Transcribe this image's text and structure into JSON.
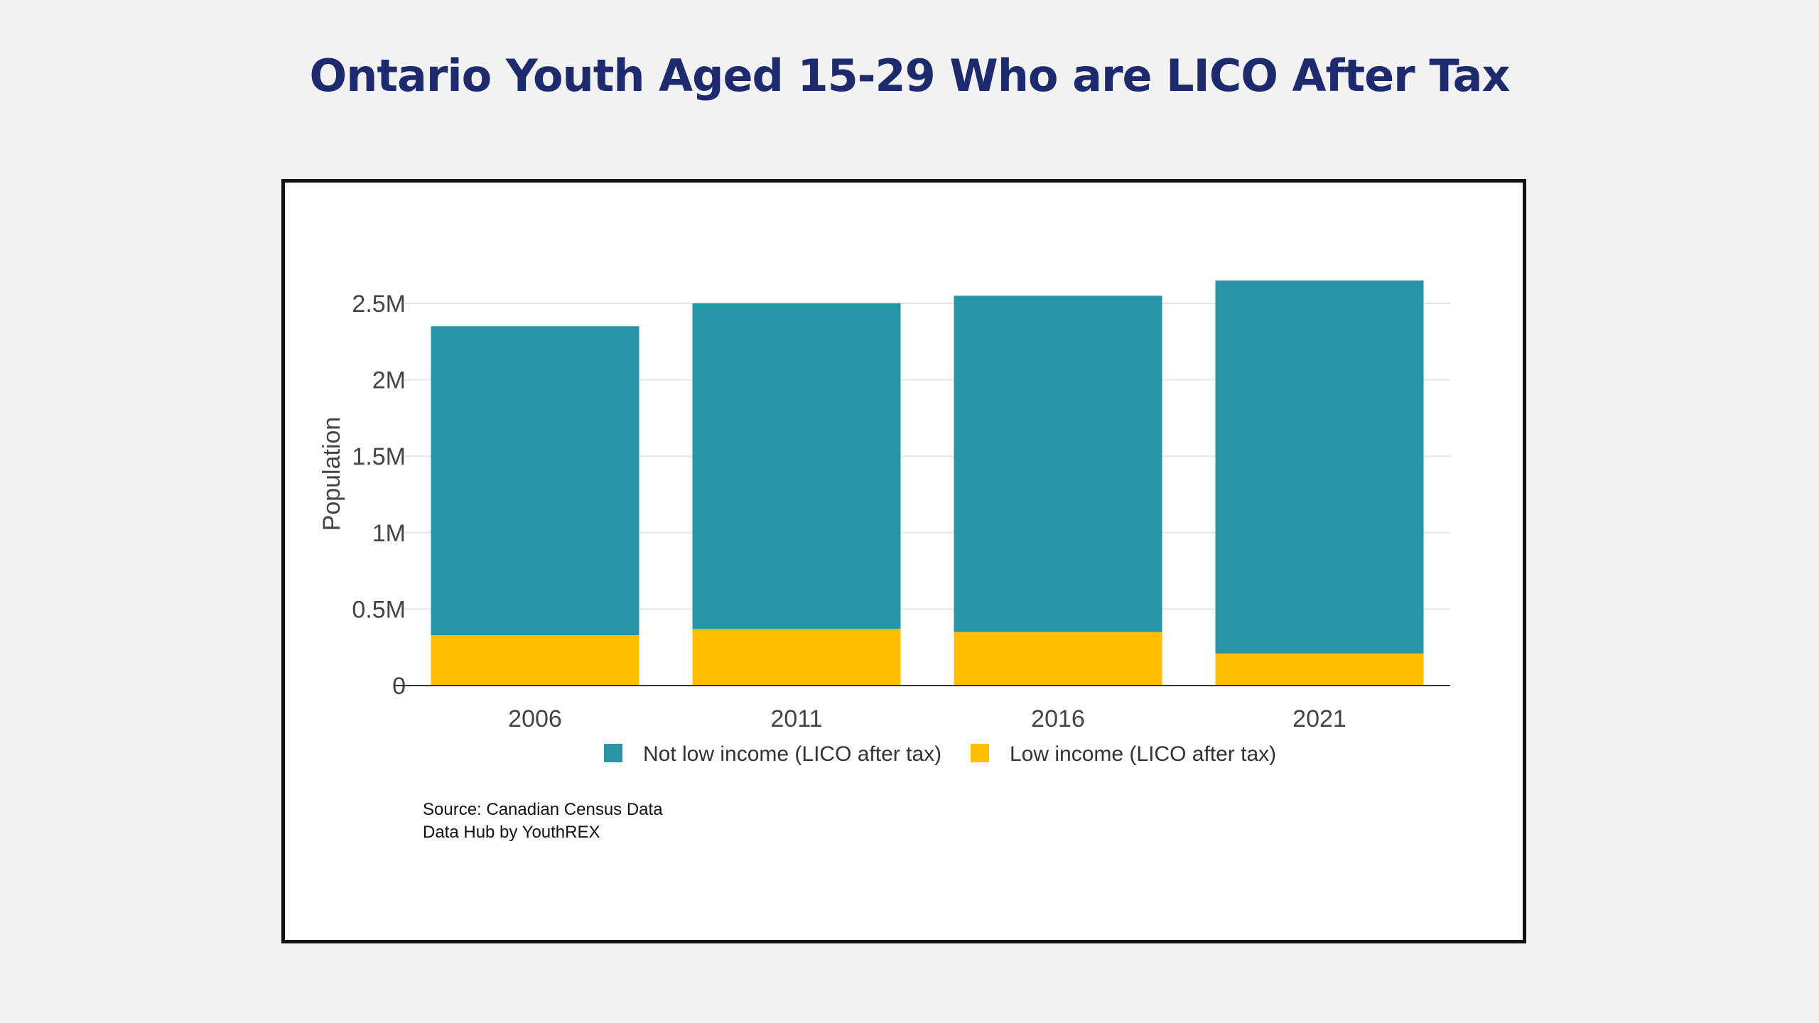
{
  "title": "Ontario Youth Aged 15-29 Who are LICO After Tax",
  "source_lines": [
    "Source: Canadian Census Data",
    "Data Hub by YouthREX"
  ],
  "colors": {
    "not_low_income": "#2795a6",
    "low_income": "#fdbf00",
    "title": "#1e2a6e",
    "background": "#f2f2f2"
  },
  "chart_data": {
    "type": "bar",
    "stacked": true,
    "categories": [
      "2006",
      "2011",
      "2016",
      "2021"
    ],
    "series": [
      {
        "name": "Low income (LICO after tax)",
        "values": [
          330000,
          370000,
          350000,
          210000
        ],
        "color": "#fdbf00"
      },
      {
        "name": "Not low income (LICO after tax)",
        "values": [
          2020000,
          2130000,
          2200000,
          2440000
        ],
        "color": "#2795a6"
      }
    ],
    "title": "Ontario Youth Aged 15-29 Who are LICO After Tax",
    "xlabel": "",
    "ylabel": "Population",
    "ylim": [
      0,
      2500000
    ],
    "yticks": [
      0,
      500000,
      1000000,
      1500000,
      2000000,
      2500000
    ],
    "ytick_labels": [
      "0",
      "0.5M",
      "1M",
      "1.5M",
      "2M",
      "2.5M"
    ],
    "grid": true,
    "legend_position": "bottom",
    "legend_order": [
      "Not low income (LICO after tax)",
      "Low income (LICO after tax)"
    ]
  }
}
